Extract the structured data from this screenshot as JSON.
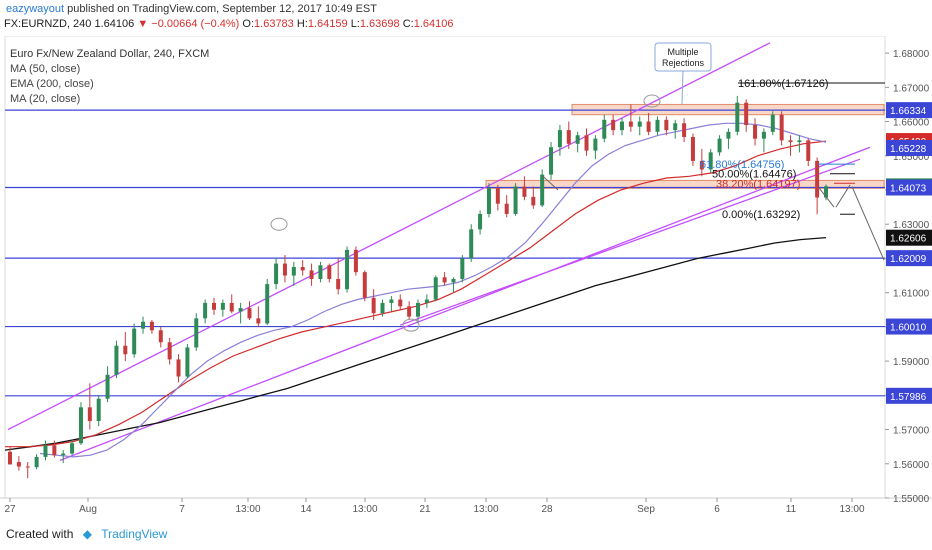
{
  "header": {
    "author": "eazywayout",
    "published": "published on TradingView.com, September 12, 2017 10:49 EST",
    "symbol": "FX:EURNZD, 240",
    "last": "1.64106",
    "change": "−0.00664 (−0.4%)",
    "o_label": "O:",
    "o": "1.63783",
    "h_label": "H:",
    "h": "1.64159",
    "l_label": "L:",
    "l": "1.63698",
    "c_label": "C:",
    "c": "1.64106"
  },
  "legend": {
    "title": "Euro Fx/New Zealand Dollar, 240, FXCM",
    "ma50": "MA (50, close)",
    "ema200": "EMA (200, close)",
    "ma20": "MA (20, close)"
  },
  "footer": {
    "created_with": "Created with",
    "brand": "TradingView"
  },
  "colors": {
    "up": "#2e8b57",
    "down": "#c63c3c",
    "channel": "#c44dff",
    "hline": "#3b45d6",
    "ma20": "#8a7fd8",
    "ma50": "#d42a2a",
    "ema200": "#111111",
    "zone": "#f5c6b0"
  },
  "chart_data": {
    "type": "candlestick",
    "title": "Euro Fx/New Zealand Dollar, 240, FXCM",
    "ylim": [
      1.55,
      1.685
    ],
    "y_ticks": [
      "1.68000",
      "1.67000",
      "1.66000",
      "1.65000",
      "1.64000",
      "1.63000",
      "1.62000",
      "1.61000",
      "1.60000",
      "1.59000",
      "1.58000",
      "1.57000",
      "1.56000",
      "1.55000"
    ],
    "x_ticks": [
      "27",
      "Aug",
      "7",
      "13:00",
      "14",
      "13:00",
      "21",
      "13:00",
      "28",
      "Sep",
      "6",
      "11",
      "13:00"
    ],
    "price_labels": [
      {
        "text": "1.66334",
        "value": 1.66334,
        "bg": "#3b45d6"
      },
      {
        "text": "1.65430",
        "value": 1.6543,
        "bg": "#d42a2a"
      },
      {
        "text": "1.65228",
        "value": 1.65228,
        "bg": "#3b45d6"
      },
      {
        "text": "1.64106",
        "value": 1.64106,
        "bg": "#2e8b57"
      },
      {
        "text": "1.64073",
        "value": 1.64073,
        "bg": "#3b45d6"
      },
      {
        "text": "1.62606",
        "value": 1.62606,
        "bg": "#111111"
      },
      {
        "text": "1.62009",
        "value": 1.62009,
        "bg": "#3b45d6"
      },
      {
        "text": "1.60010",
        "value": 1.6001,
        "bg": "#3b45d6"
      },
      {
        "text": "1.57986",
        "value": 1.57986,
        "bg": "#3b45d6"
      }
    ],
    "horizontal_levels": [
      1.66334,
      1.64073,
      1.62009,
      1.6001,
      1.57986
    ],
    "fib_levels": [
      {
        "label": "161.80%(1.67126)",
        "value": 1.67126,
        "color": "#111111"
      },
      {
        "label": "61.80%(1.64756)",
        "value": 1.64756,
        "color": "#2a7bd6"
      },
      {
        "label": "50.00%(1.64476)",
        "value": 1.64476,
        "color": "#111111"
      },
      {
        "label": "38.20%(1.64197)",
        "value": 1.64197,
        "color": "#d42a2a"
      },
      {
        "label": "0.00%(1.63292)",
        "value": 1.63292,
        "color": "#111111"
      }
    ],
    "annotation": "Multiple Rejections",
    "candles": [
      [
        1.5635,
        1.5648,
        1.5608,
        1.5598
      ],
      [
        1.5605,
        1.5622,
        1.558,
        1.5592
      ],
      [
        1.5592,
        1.5605,
        1.5558,
        1.559
      ],
      [
        1.559,
        1.5628,
        1.5584,
        1.562
      ],
      [
        1.562,
        1.5668,
        1.561,
        1.5654
      ],
      [
        1.5654,
        1.5668,
        1.5618,
        1.5625
      ],
      [
        1.5625,
        1.564,
        1.5602,
        1.563
      ],
      [
        1.563,
        1.567,
        1.5625,
        1.566
      ],
      [
        1.566,
        1.578,
        1.5655,
        1.5765
      ],
      [
        1.5765,
        1.5835,
        1.57,
        1.5725
      ],
      [
        1.5725,
        1.58,
        1.571,
        1.579
      ],
      [
        1.579,
        1.5885,
        1.578,
        1.586
      ],
      [
        1.586,
        1.596,
        1.585,
        1.5945
      ],
      [
        1.5945,
        1.5985,
        1.59,
        1.592
      ],
      [
        1.592,
        1.601,
        1.591,
        1.5995
      ],
      [
        1.5995,
        1.603,
        1.598,
        1.6015
      ],
      [
        1.6015,
        1.602,
        1.598,
        1.599
      ],
      [
        1.599,
        1.6,
        1.594,
        1.5955
      ],
      [
        1.5955,
        1.5968,
        1.589,
        1.5905
      ],
      [
        1.5905,
        1.592,
        1.5838,
        1.5855
      ],
      [
        1.5855,
        1.595,
        1.585,
        1.594
      ],
      [
        1.594,
        1.604,
        1.593,
        1.6025
      ],
      [
        1.6025,
        1.608,
        1.601,
        1.607
      ],
      [
        1.607,
        1.6085,
        1.6035,
        1.605
      ],
      [
        1.605,
        1.608,
        1.603,
        1.607
      ],
      [
        1.607,
        1.6095,
        1.604,
        1.6045
      ],
      [
        1.6045,
        1.607,
        1.601,
        1.6055
      ],
      [
        1.6055,
        1.6075,
        1.602,
        1.6025
      ],
      [
        1.6025,
        1.606,
        1.6,
        1.601
      ],
      [
        1.601,
        1.614,
        1.6005,
        1.6125
      ],
      [
        1.6125,
        1.62,
        1.611,
        1.6185
      ],
      [
        1.6185,
        1.621,
        1.613,
        1.615
      ],
      [
        1.615,
        1.619,
        1.612,
        1.6175
      ],
      [
        1.6175,
        1.6195,
        1.615,
        1.6165
      ],
      [
        1.6165,
        1.6185,
        1.612,
        1.614
      ],
      [
        1.614,
        1.619,
        1.613,
        1.618
      ],
      [
        1.618,
        1.6185,
        1.613,
        1.614
      ],
      [
        1.614,
        1.62,
        1.6095,
        1.611
      ],
      [
        1.611,
        1.6235,
        1.61,
        1.6225
      ],
      [
        1.6225,
        1.6235,
        1.615,
        1.616
      ],
      [
        1.616,
        1.6165,
        1.6075,
        1.6085
      ],
      [
        1.6085,
        1.611,
        1.602,
        1.604
      ],
      [
        1.604,
        1.608,
        1.603,
        1.607
      ],
      [
        1.607,
        1.609,
        1.6045,
        1.608
      ],
      [
        1.608,
        1.6095,
        1.605,
        1.606
      ],
      [
        1.606,
        1.6075,
        1.602,
        1.603
      ],
      [
        1.603,
        1.608,
        1.601,
        1.607
      ],
      [
        1.607,
        1.6095,
        1.6055,
        1.608
      ],
      [
        1.608,
        1.615,
        1.6075,
        1.6145
      ],
      [
        1.6145,
        1.616,
        1.612,
        1.613
      ],
      [
        1.613,
        1.6145,
        1.61,
        1.614
      ],
      [
        1.614,
        1.621,
        1.613,
        1.62
      ],
      [
        1.62,
        1.63,
        1.619,
        1.6285
      ],
      [
        1.6285,
        1.634,
        1.627,
        1.633
      ],
      [
        1.633,
        1.642,
        1.632,
        1.6405
      ],
      [
        1.6405,
        1.6415,
        1.634,
        1.636
      ],
      [
        1.636,
        1.6385,
        1.632,
        1.633
      ],
      [
        1.633,
        1.642,
        1.6325,
        1.641
      ],
      [
        1.641,
        1.644,
        1.637,
        1.638
      ],
      [
        1.638,
        1.641,
        1.6345,
        1.6355
      ],
      [
        1.6355,
        1.646,
        1.635,
        1.6445
      ],
      [
        1.6445,
        1.654,
        1.643,
        1.6525
      ],
      [
        1.6525,
        1.659,
        1.65,
        1.6575
      ],
      [
        1.6575,
        1.66,
        1.652,
        1.6535
      ],
      [
        1.6535,
        1.657,
        1.651,
        1.656
      ],
      [
        1.656,
        1.658,
        1.65,
        1.6515
      ],
      [
        1.6515,
        1.656,
        1.649,
        1.655
      ],
      [
        1.655,
        1.662,
        1.654,
        1.6605
      ],
      [
        1.6605,
        1.662,
        1.656,
        1.6575
      ],
      [
        1.6575,
        1.661,
        1.656,
        1.66
      ],
      [
        1.66,
        1.665,
        1.657,
        1.6585
      ],
      [
        1.6585,
        1.6615,
        1.656,
        1.66
      ],
      [
        1.66,
        1.6625,
        1.656,
        1.657
      ],
      [
        1.657,
        1.6615,
        1.656,
        1.6605
      ],
      [
        1.6605,
        1.6615,
        1.656,
        1.6575
      ],
      [
        1.6575,
        1.6605,
        1.655,
        1.6595
      ],
      [
        1.6595,
        1.661,
        1.654,
        1.6555
      ],
      [
        1.6555,
        1.6565,
        1.647,
        1.6485
      ],
      [
        1.6485,
        1.652,
        1.644,
        1.646
      ],
      [
        1.646,
        1.652,
        1.645,
        1.651
      ],
      [
        1.651,
        1.656,
        1.65,
        1.655
      ],
      [
        1.655,
        1.658,
        1.652,
        1.657
      ],
      [
        1.657,
        1.6675,
        1.656,
        1.6655
      ],
      [
        1.6655,
        1.6665,
        1.657,
        1.659
      ],
      [
        1.659,
        1.661,
        1.653,
        1.655
      ],
      [
        1.655,
        1.658,
        1.651,
        1.657
      ],
      [
        1.657,
        1.663,
        1.656,
        1.662
      ],
      [
        1.662,
        1.663,
        1.653,
        1.6545
      ],
      [
        1.6545,
        1.656,
        1.65,
        1.654
      ],
      [
        1.654,
        1.656,
        1.651,
        1.6545
      ],
      [
        1.6545,
        1.655,
        1.647,
        1.6485
      ],
      [
        1.6485,
        1.6495,
        1.6329,
        1.6378
      ],
      [
        1.6378,
        1.6416,
        1.637,
        1.6411
      ]
    ],
    "ma20": [
      1.563,
      1.5625,
      1.562,
      1.5625,
      1.564,
      1.567,
      1.571,
      1.576,
      1.581,
      1.586,
      1.59,
      1.593,
      1.5955,
      1.5975,
      1.599,
      1.6,
      1.602,
      1.6045,
      1.6065,
      1.608,
      1.609,
      1.61,
      1.611,
      1.6115,
      1.612,
      1.613,
      1.615,
      1.6175,
      1.6205,
      1.6245,
      1.63,
      1.636,
      1.642,
      1.647,
      1.6505,
      1.653,
      1.6545,
      1.656,
      1.657,
      1.658,
      1.659,
      1.6595,
      1.6595,
      1.659,
      1.658,
      1.6565,
      1.655,
      1.654
    ],
    "ma50": [
      1.565,
      1.565,
      1.5655,
      1.5665,
      1.5685,
      1.5715,
      1.575,
      1.5795,
      1.584,
      1.588,
      1.5915,
      1.594,
      1.5965,
      1.5985,
      1.6,
      1.6015,
      1.603,
      1.6045,
      1.606,
      1.608,
      1.611,
      1.615,
      1.619,
      1.623,
      1.628,
      1.633,
      1.637,
      1.64,
      1.642,
      1.6435,
      1.644,
      1.645,
      1.647,
      1.65,
      1.652,
      1.6535,
      1.6543
    ],
    "ema200": [
      1.564,
      1.565,
      1.566,
      1.5675,
      1.569,
      1.5705,
      1.572,
      1.574,
      1.576,
      1.578,
      1.58,
      1.582,
      1.5845,
      1.587,
      1.5895,
      1.592,
      1.5945,
      1.597,
      1.5995,
      1.602,
      1.6045,
      1.607,
      1.6095,
      1.612,
      1.614,
      1.616,
      1.618,
      1.62,
      1.6215,
      1.623,
      1.6245,
      1.6255,
      1.6261
    ]
  }
}
